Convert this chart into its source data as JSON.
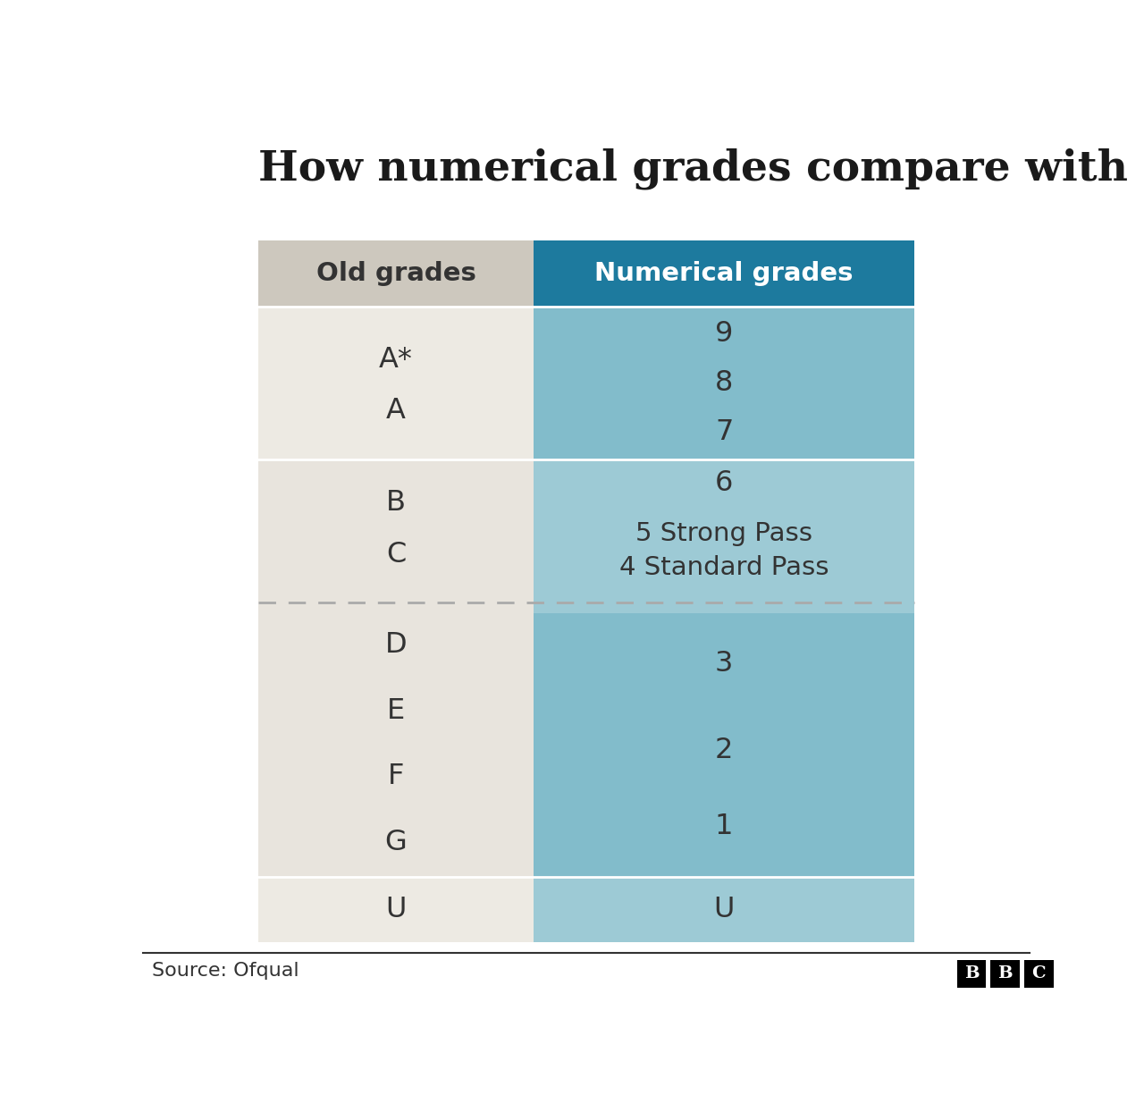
{
  "title": "How numerical grades compare with old ones",
  "col1_header": "Old grades",
  "col2_header": "Numerical grades",
  "source": "Source: Ofqual",
  "header_bg_left": "#cdc8be",
  "header_bg_right": "#1d7a9e",
  "header_text_left": "#333333",
  "header_text_right": "#ffffff",
  "cell_text_color": "#333333",
  "dashed_line_color": "#aaaaaa",
  "background_color": "#ffffff",
  "title_color": "#1a1a1a",
  "rows": [
    {
      "left_labels": [
        "A*",
        "A"
      ],
      "right_labels": [
        "9",
        "8",
        "7"
      ],
      "left_bg": "#edeae3",
      "right_bg": "#82bccb"
    },
    {
      "left_labels": [
        "B",
        "C"
      ],
      "right_labels": [
        "6",
        "5 Strong Pass",
        "4 Standard Pass"
      ],
      "left_bg": "#e8e4dd",
      "right_bg": "#9dcad5"
    },
    {
      "left_labels": [
        "D",
        "E",
        "F",
        "G"
      ],
      "right_labels": [
        "3",
        "2",
        "1"
      ],
      "left_bg": "#e8e4dd",
      "right_bg": "#82bccb"
    },
    {
      "left_labels": [
        "U"
      ],
      "right_labels": [
        "U"
      ],
      "left_bg": "#edeae3",
      "right_bg": "#9dcad5"
    }
  ]
}
